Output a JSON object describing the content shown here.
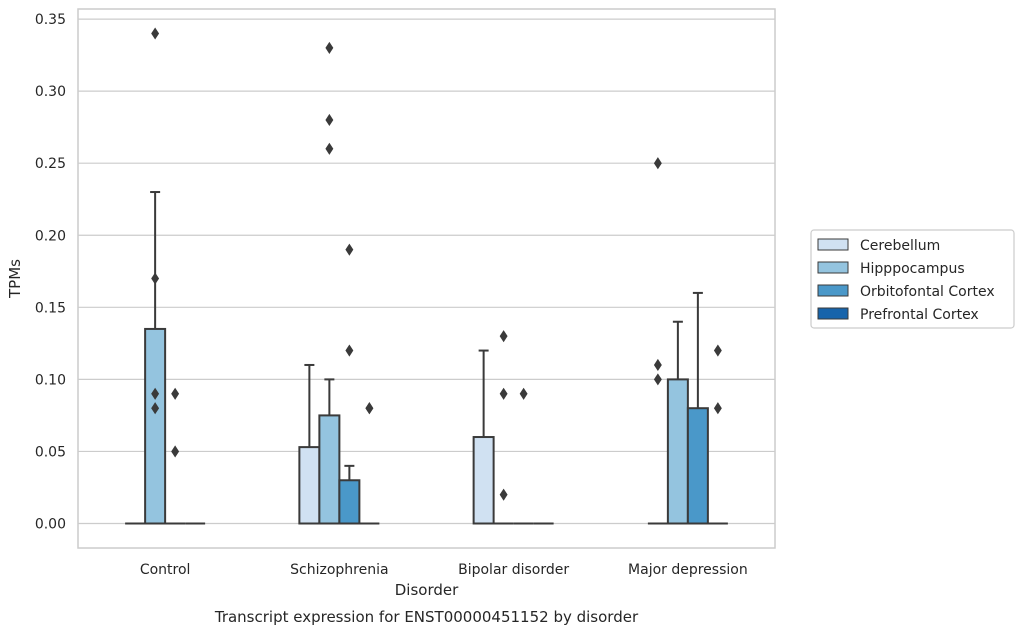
{
  "chart_data": {
    "type": "boxplot",
    "title": "",
    "caption": "Transcript expression for ENST00000451152 by disorder",
    "xlabel": "Disorder",
    "ylabel": "TPMs",
    "ylim": [
      -0.017,
      0.357
    ],
    "yticks": [
      "0.00",
      "0.05",
      "0.10",
      "0.15",
      "0.20",
      "0.25",
      "0.30",
      "0.35"
    ],
    "ytick_values": [
      0,
      0.05,
      0.1,
      0.15,
      0.2,
      0.25,
      0.3,
      0.35
    ],
    "grid": "horizontal",
    "legend_placement": "right",
    "categories": [
      "Control",
      "Schizophrenia",
      "Bipolar disorder",
      "Major depression"
    ],
    "series": [
      {
        "name": "Cerebellum",
        "color": "#d0e1f2",
        "boxes": [
          {
            "q1": 0,
            "median": 0,
            "q3": 0,
            "whisker_low": 0,
            "whisker_high": 0,
            "outliers": []
          },
          {
            "q1": 0,
            "median": 0,
            "q3": 0.053,
            "whisker_low": 0,
            "whisker_high": 0.11,
            "outliers": []
          },
          {
            "q1": 0,
            "median": 0,
            "q3": 0.06,
            "whisker_low": 0,
            "whisker_high": 0.12,
            "outliers": []
          },
          {
            "q1": 0,
            "median": 0,
            "q3": 0,
            "whisker_low": 0,
            "whisker_high": 0,
            "outliers": [
              0.25,
              0.11,
              0.1
            ]
          }
        ]
      },
      {
        "name": "Hipppocampus",
        "color": "#94c4df",
        "boxes": [
          {
            "q1": 0,
            "median": 0,
            "q3": 0.135,
            "whisker_low": 0,
            "whisker_high": 0.23,
            "outliers": [
              0.34
            ]
          },
          {
            "q1": 0,
            "median": 0,
            "q3": 0.075,
            "whisker_low": 0,
            "whisker_high": 0.1,
            "outliers": [
              0.33,
              0.28,
              0.26
            ]
          },
          {
            "q1": 0,
            "median": 0,
            "q3": 0,
            "whisker_low": 0,
            "whisker_high": 0,
            "outliers": [
              0.13,
              0.09,
              0.02
            ]
          },
          {
            "q1": 0,
            "median": 0,
            "q3": 0.1,
            "whisker_low": 0,
            "whisker_high": 0.14,
            "outliers": []
          }
        ]
      },
      {
        "name": "Orbitofontal Cortex",
        "color": "#4a98c9",
        "boxes": [
          {
            "q1": 0,
            "median": 0,
            "q3": 0,
            "whisker_low": 0,
            "whisker_high": 0,
            "outliers": [
              0.09,
              0.05
            ]
          },
          {
            "q1": 0,
            "median": 0,
            "q3": 0.03,
            "whisker_low": 0,
            "whisker_high": 0.04,
            "outliers": [
              0.19,
              0.12
            ]
          },
          {
            "q1": 0,
            "median": 0,
            "q3": 0,
            "whisker_low": 0,
            "whisker_high": 0,
            "outliers": [
              0.09
            ]
          },
          {
            "q1": 0,
            "median": 0,
            "q3": 0.08,
            "whisker_low": 0,
            "whisker_high": 0.16,
            "outliers": []
          }
        ]
      },
      {
        "name": "Prefrontal Cortex",
        "color": "#1764ab",
        "boxes": [
          {
            "q1": 0,
            "median": 0,
            "q3": 0,
            "whisker_low": 0,
            "whisker_high": 0,
            "outliers": []
          },
          {
            "q1": 0,
            "median": 0,
            "q3": 0,
            "whisker_low": 0,
            "whisker_high": 0,
            "outliers": [
              0.08
            ]
          },
          {
            "q1": 0,
            "median": 0,
            "q3": 0,
            "whisker_low": 0,
            "whisker_high": 0,
            "outliers": []
          },
          {
            "q1": 0,
            "median": 0,
            "q3": 0,
            "whisker_low": 0,
            "whisker_high": 0,
            "outliers": [
              0.12,
              0.08
            ]
          }
        ]
      }
    ],
    "extra_outliers": [
      {
        "category": 0,
        "offset": -0.5,
        "values": [
          0.17,
          0.09,
          0.08
        ]
      },
      {
        "category": 1,
        "offset": 1.5,
        "values": [
          0.08
        ]
      }
    ]
  }
}
